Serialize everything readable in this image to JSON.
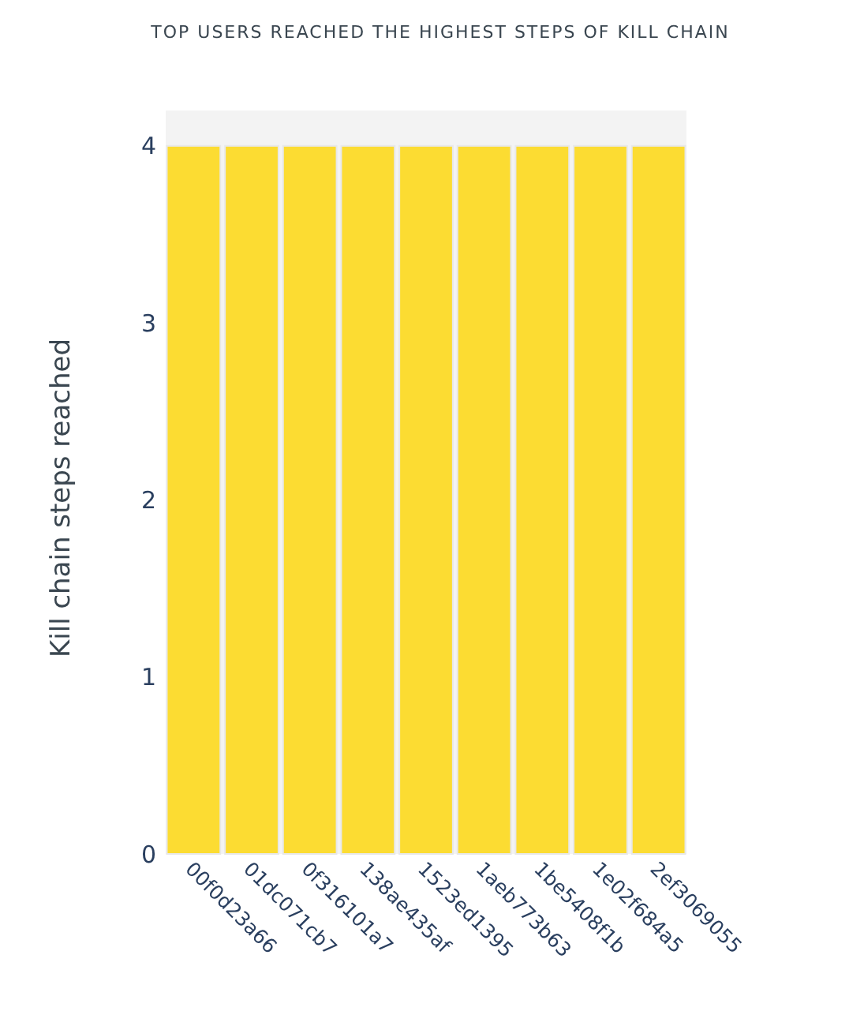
{
  "chart_data": {
    "type": "bar",
    "title": "TOP USERS REACHED THE HIGHEST STEPS OF KILL CHAIN",
    "ylabel": "Kill chain steps reached",
    "categories": [
      "00f0d23a66",
      "01dc071cb7",
      "0f316101a7",
      "138ae435af",
      "1523ed1395",
      "1aeb773b63",
      "1be5408f1b",
      "1e02f684a5",
      "2ef3069055"
    ],
    "values": [
      4,
      4,
      4,
      4,
      4,
      4,
      4,
      4,
      4
    ],
    "color": "#fcdc32",
    "ylim": [
      0,
      4.2
    ],
    "yticks": [
      0,
      1,
      2,
      3,
      4
    ]
  }
}
